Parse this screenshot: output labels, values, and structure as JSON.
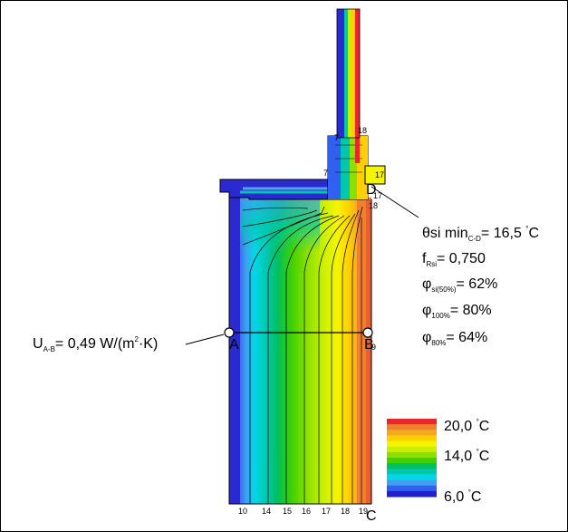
{
  "theta": {
    "main": "θsi min",
    "sub": "C-D",
    "eq": "= 16,5 ",
    "deg": "°",
    "unit": "C"
  },
  "f": {
    "main": "f",
    "sub": "Rsi",
    "eq": "= 0,750"
  },
  "phi50": {
    "main": "φ",
    "sub": "si(50%)",
    "eq": "= 62%"
  },
  "phi100": {
    "main": "φ",
    "sub": "100%",
    "eq": "= 80%"
  },
  "phi80": {
    "main": "φ",
    "sub": "80%",
    "eq": "= 64%"
  },
  "u": {
    "main": "U",
    "sub": "A-B",
    "eq": "= 0,49 W/(m",
    "sup": "2",
    "tail": "·K)"
  },
  "points": {
    "a": "A",
    "b": "B",
    "c": "C",
    "d": "D"
  },
  "legend": {
    "top": {
      "value": "20,0 ",
      "deg": "°",
      "unit": "C"
    },
    "mid": {
      "value": "14,0 ",
      "deg": "°",
      "unit": "C"
    },
    "bot": {
      "value": "6,0 ",
      "deg": "°",
      "unit": "C"
    },
    "colors": [
      "#e8262b",
      "#f08030",
      "#f5a623",
      "#ffd000",
      "#f5f500",
      "#c8f000",
      "#8ce000",
      "#40d000",
      "#00c060",
      "#00c8b0",
      "#00d8e8",
      "#40a0f0",
      "#3060f0",
      "#2020d0"
    ]
  },
  "bottom_labels": [
    "10",
    "14",
    "15",
    "16",
    "17",
    "18",
    "19"
  ],
  "iso_labels": {
    "l7a": "7",
    "l7b": "7",
    "l18top": "18",
    "l17a": "17",
    "l17b": "17",
    "l18mid": "18",
    "l9": "9"
  },
  "colors": {
    "outline": "#000000",
    "blue_edge": "#2a2ad0",
    "red": "#e8262b"
  }
}
